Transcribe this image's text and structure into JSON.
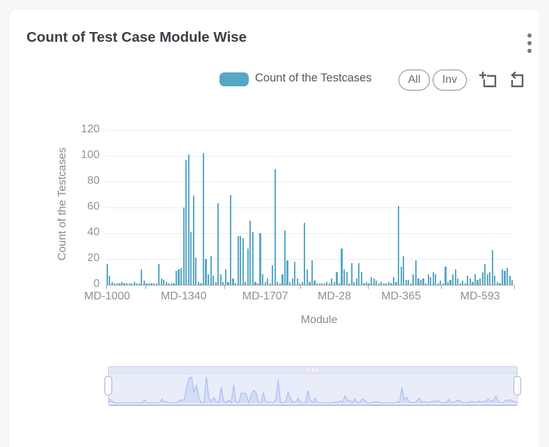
{
  "card": {
    "title": "Count of Test Case Module Wise"
  },
  "header": {
    "menu_icon": "kebab-menu-icon"
  },
  "legend": {
    "label": "Count of the Testcases",
    "swatch_color": "#55a7c6"
  },
  "toolbar": {
    "all_label": "All",
    "inv_label": "Inv",
    "icons": [
      "box-zoom-icon",
      "restore-icon"
    ]
  },
  "colors": {
    "bar": "#55a7c6",
    "grid": "#e7ecf6",
    "axis": "#9aa0a6",
    "axis_text": "#8b9197",
    "minimap_area_fill": "#d4ddf6",
    "minimap_line": "#a6b7ea",
    "minimap_bg": "#e9edfa"
  },
  "chart_data": {
    "type": "bar",
    "title": "Count of Test Case Module Wise",
    "xlabel": "Module",
    "ylabel": "Count of the Testcases",
    "ylim": [
      0,
      120
    ],
    "yticks": [
      0,
      20,
      40,
      60,
      80,
      100,
      120
    ],
    "grid": true,
    "legend_position": "top",
    "x_tick_labels": [
      {
        "label": "MD-1000",
        "index": 0
      },
      {
        "label": "MD-1340",
        "index": 31
      },
      {
        "label": "MD-1707",
        "index": 64
      },
      {
        "label": "MD-28",
        "index": 92
      },
      {
        "label": "MD-365",
        "index": 119
      },
      {
        "label": "MD-593",
        "index": 151
      }
    ],
    "values": [
      16,
      7,
      2,
      1,
      1,
      1,
      2,
      1,
      1,
      1,
      1,
      2,
      1,
      1,
      12,
      3,
      1,
      1,
      1,
      1,
      1,
      16,
      5,
      4,
      2,
      1,
      1,
      1,
      11,
      12,
      13,
      60,
      97,
      101,
      41,
      69,
      21,
      2,
      1,
      102,
      20,
      8,
      22,
      7,
      2,
      63,
      8,
      2,
      12,
      2,
      70,
      5,
      1,
      38,
      38,
      36,
      2,
      28,
      50,
      41,
      2,
      1,
      40,
      8,
      2,
      5,
      1,
      15,
      90,
      2,
      1,
      8,
      42,
      19,
      2,
      5,
      18,
      5,
      1,
      2,
      48,
      12,
      2,
      19,
      3,
      1,
      1,
      1,
      1,
      2,
      1,
      5,
      2,
      10,
      1,
      28,
      12,
      10,
      1,
      17,
      2,
      5,
      17,
      10,
      1,
      2,
      1,
      6,
      5,
      3,
      1,
      2,
      1,
      1,
      2,
      1,
      6,
      2,
      61,
      14,
      22,
      4,
      4,
      1,
      8,
      19,
      5,
      4,
      5,
      1,
      8,
      6,
      10,
      8,
      1,
      3,
      1,
      14,
      2,
      4,
      8,
      12,
      5,
      1,
      3,
      1,
      7,
      5,
      2,
      8,
      4,
      5,
      10,
      16,
      8,
      10,
      27,
      7,
      2,
      1,
      12,
      11,
      13,
      7,
      4
    ],
    "datazoom": {
      "range_start_pct": 0,
      "range_end_pct": 100
    }
  }
}
